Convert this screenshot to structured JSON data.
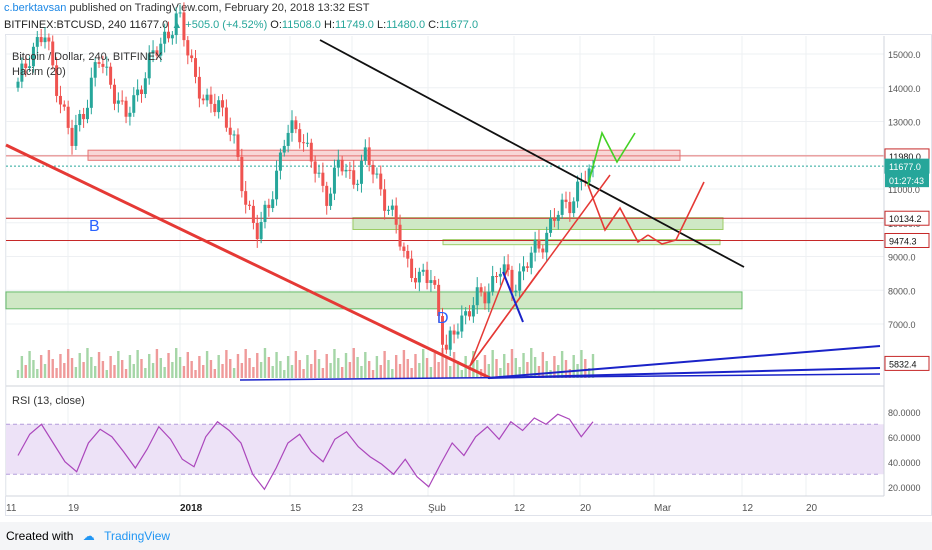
{
  "header": {
    "author": "c.berktavsan",
    "published_text": "published on TradingView.com, February 20, 2018 13:32 EST"
  },
  "symbol_bar": {
    "symbol": "BITFINEX:BTCUSD, 240",
    "last": "11677.0",
    "change": "▲ +505.0 (+4.52%)",
    "open_label": "O:",
    "open": "11508.0",
    "high_label": "H:",
    "high": "11749.0",
    "low_label": "L:",
    "low": "11480.0",
    "close_label": "C:",
    "close": "11677.0"
  },
  "legend": {
    "title": "Bitcoin / Dollar, 240, BITFINEX",
    "volume": "Hacim (20)",
    "rsi": "RSI (13, close)"
  },
  "footer": {
    "created_with": "Created with",
    "brand": "TradingView"
  },
  "colors": {
    "up": "#26a69a",
    "down": "#ef5350",
    "rsi_line": "#ab47bc",
    "rsi_band": "#ede2f7",
    "resistance_zone": "#f8d7d7",
    "support_zone": "#cfe8c5"
  },
  "chart_data": [
    {
      "type": "candlestick",
      "title": "Bitcoin / Dollar, 240, BITFINEX",
      "ylim": [
        5400,
        16000
      ],
      "y_ticks": [
        7000,
        8000,
        9000,
        10000,
        11000,
        12000,
        13000,
        14000,
        15000
      ],
      "y_tick_labels": [
        "7000.0",
        "8000.0",
        "9000.0",
        "10000.0",
        "11000.0",
        "12000.0",
        "13000.0",
        "14000.0",
        "15000.0"
      ],
      "x_tick_labels": [
        "11",
        "19",
        "2018",
        "15",
        "23",
        "Şub",
        "12",
        "20",
        "Mar",
        "12",
        "20"
      ],
      "price_path": [
        [
          "Jan 11",
          14000
        ],
        [
          "Jan 13",
          15200
        ],
        [
          "Jan 15",
          15500
        ],
        [
          "Jan 16",
          14000
        ],
        [
          "Jan 17",
          12300
        ],
        [
          "Jan 19",
          13500
        ],
        [
          "Jan 21",
          14800
        ],
        [
          "Jan 23",
          14200
        ],
        [
          "Jan 25",
          13000
        ],
        [
          "Jan 27",
          14000
        ],
        [
          "Jan 29",
          14800
        ],
        [
          "Jan 31",
          15600
        ],
        [
          "Feb 1",
          16000
        ],
        [
          "Feb 3",
          14800
        ],
        [
          "Feb 5",
          13300
        ],
        [
          "Feb 7",
          13700
        ],
        [
          "Feb 9",
          12500
        ],
        [
          "Feb 11",
          10800
        ],
        [
          "Feb 12",
          9500
        ],
        [
          "Feb 14",
          11000
        ],
        [
          "Feb 16",
          12500
        ],
        [
          "Feb 17",
          12900
        ],
        [
          "Feb 18",
          11700
        ],
        [
          "Feb 19",
          10800
        ],
        [
          "Feb 21",
          11700
        ],
        [
          "Feb 23",
          11300
        ],
        [
          "Feb 25",
          11900
        ],
        [
          "Feb 27",
          11200
        ],
        [
          "Feb 28",
          10100
        ],
        [
          "Mar 1",
          9000
        ],
        [
          "Mar 3",
          8200
        ],
        [
          "Mar 4",
          8500
        ],
        [
          "Mar 6",
          6000
        ],
        [
          "Mar 7",
          7200
        ],
        [
          "Mar 8",
          7500
        ],
        [
          "Mar 9",
          8000
        ],
        [
          "Mar 10",
          8600
        ],
        [
          "Mar 11",
          8200
        ],
        [
          "Mar 13",
          8700
        ],
        [
          "Mar 15",
          9400
        ],
        [
          "Mar 16",
          10000
        ],
        [
          "Mar 18",
          10600
        ],
        [
          "Mar 19",
          11000
        ],
        [
          "Mar 20",
          11677
        ]
      ],
      "last_price": 11677.0,
      "countdown": "01:27:43",
      "price_labels": [
        {
          "value": 11980.0,
          "text": "11980.0"
        },
        {
          "value": 11677.0,
          "text": "11677.0"
        },
        {
          "value": 10134.2,
          "text": "10134.2"
        },
        {
          "value": 9474.3,
          "text": "9474.3"
        },
        {
          "value": 5832.4,
          "text": "5832.4"
        }
      ],
      "annotations": [
        "B",
        "D"
      ]
    },
    {
      "type": "bar",
      "title": "Hacim (20)"
    },
    {
      "type": "line",
      "title": "RSI (13, close)",
      "ylim": [
        15,
        83
      ],
      "y_ticks": [
        20,
        40,
        60,
        80
      ],
      "y_tick_labels": [
        "20.0000",
        "40.0000",
        "60.0000",
        "80.0000"
      ],
      "bands": [
        30,
        70
      ],
      "series": [
        {
          "values": [
            45,
            62,
            70,
            55,
            40,
            32,
            55,
            66,
            60,
            48,
            35,
            50,
            68,
            58,
            42,
            36,
            60,
            72,
            65,
            55,
            30,
            18,
            35,
            55,
            62,
            48,
            40,
            58,
            64,
            52,
            44,
            38,
            30,
            42,
            28,
            20,
            38,
            55,
            45,
            60,
            68,
            58,
            72,
            65,
            75,
            70,
            78,
            74,
            60,
            72
          ]
        }
      ]
    }
  ]
}
